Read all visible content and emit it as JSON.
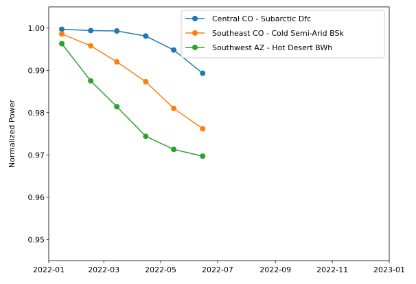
{
  "chart_data": {
    "type": "line",
    "title": "",
    "xlabel": "",
    "ylabel": "Normalized Power",
    "x_type": "date",
    "xlim": [
      "2022-01-01",
      "2023-01-01"
    ],
    "ylim": [
      0.945,
      1.005
    ],
    "x_ticks": [
      "2022-01",
      "2022-03",
      "2022-05",
      "2022-07",
      "2022-09",
      "2022-11",
      "2023-01"
    ],
    "y_ticks": [
      0.95,
      0.96,
      0.97,
      0.98,
      0.99,
      1.0
    ],
    "y_tick_labels": [
      "0.95",
      "0.96",
      "0.97",
      "0.98",
      "0.99",
      "1.00"
    ],
    "grid": false,
    "legend_position": "top-right",
    "x": [
      "2022-01-15",
      "2022-02-15",
      "2022-03-15",
      "2022-04-15",
      "2022-05-15",
      "2022-06-15"
    ],
    "series": [
      {
        "name": "Central CO - Subarctic Dfc",
        "color": "#1f77b4",
        "values": [
          0.9997,
          0.9994,
          0.9993,
          0.9981,
          0.9948,
          0.9893
        ]
      },
      {
        "name": "Southeast CO - Cold Semi-Arid BSk",
        "color": "#ff7f0e",
        "values": [
          0.9986,
          0.9958,
          0.992,
          0.9873,
          0.981,
          0.9762
        ]
      },
      {
        "name": "Southwest AZ - Hot Desert BWh",
        "color": "#2ca02c",
        "values": [
          0.9963,
          0.9875,
          0.9814,
          0.9744,
          0.9713,
          0.9697
        ]
      }
    ]
  }
}
